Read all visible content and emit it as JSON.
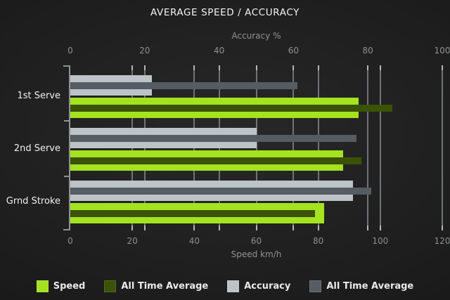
{
  "chart_data": {
    "type": "bar",
    "orientation": "horizontal",
    "title": "AVERAGE SPEED / ACCURACY",
    "categories": [
      "1st Serve",
      "2nd Serve",
      "Grnd Stroke"
    ],
    "axes": {
      "top": {
        "label": "Accuracy %",
        "min": 0,
        "max": 100,
        "ticks": [
          0,
          20,
          40,
          60,
          80,
          100
        ]
      },
      "bottom": {
        "label": "Speed km/h",
        "min": 0,
        "max": 120,
        "ticks": [
          0,
          20,
          40,
          60,
          80,
          100,
          120
        ]
      }
    },
    "series": [
      {
        "name": "Speed",
        "axis": "bottom",
        "color": "#a3e320",
        "values": [
          93,
          88,
          82
        ]
      },
      {
        "name": "All Time Average",
        "axis": "bottom",
        "color": "#3b5306",
        "values": [
          104,
          94,
          79
        ]
      },
      {
        "name": "Accuracy",
        "axis": "top",
        "color": "#bdc3c6",
        "values": [
          22,
          50,
          76
        ]
      },
      {
        "name": "All Time Average",
        "axis": "top",
        "color": "#565c63",
        "values": [
          61,
          77,
          81
        ]
      }
    ],
    "legend": [
      {
        "label": "Speed",
        "color": "#a3e320"
      },
      {
        "label": "All Time Average",
        "color": "#3b5306"
      },
      {
        "label": "Accuracy",
        "color": "#bdc3c6"
      },
      {
        "label": "All Time Average",
        "color": "#565c63"
      }
    ],
    "legend_position": "bottom",
    "grid": true
  },
  "colors": {
    "background": "#1e1e1e",
    "title_text": "#f3f3f3",
    "axis_text": "#8d9092",
    "category_text": "#f0f0f0",
    "gridline": "#6f7377",
    "spine": "#8f9396"
  }
}
